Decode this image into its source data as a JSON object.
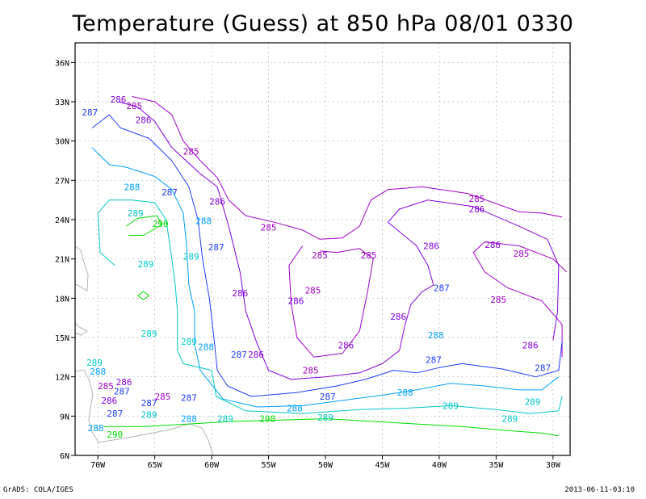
{
  "title": "Temperature (Guess) at 850 hPa 08/01 0330",
  "footer": {
    "left": "GrADS: COLA/IGES",
    "right": "2013-06-11-03:10"
  },
  "axes": {
    "lon_range": [
      -72,
      -28.5
    ],
    "lat_range": [
      6,
      37.5
    ],
    "x_ticks": [
      {
        "v": -70,
        "label": "70W"
      },
      {
        "v": -65,
        "label": "65W"
      },
      {
        "v": -60,
        "label": "60W"
      },
      {
        "v": -55,
        "label": "55W"
      },
      {
        "v": -50,
        "label": "50W"
      },
      {
        "v": -45,
        "label": "45W"
      },
      {
        "v": -40,
        "label": "40W"
      },
      {
        "v": -35,
        "label": "35W"
      },
      {
        "v": -30,
        "label": "30W"
      }
    ],
    "y_ticks": [
      {
        "v": 6,
        "label": "6N"
      },
      {
        "v": 9,
        "label": "9N"
      },
      {
        "v": 12,
        "label": "12N"
      },
      {
        "v": 15,
        "label": "15N"
      },
      {
        "v": 18,
        "label": "18N"
      },
      {
        "v": 21,
        "label": "21N"
      },
      {
        "v": 24,
        "label": "24N"
      },
      {
        "v": 27,
        "label": "27N"
      },
      {
        "v": 30,
        "label": "30N"
      },
      {
        "v": 33,
        "label": "33N"
      },
      {
        "v": 36,
        "label": "36N"
      }
    ],
    "grid": true
  },
  "colors": {
    "285": "#a000c8",
    "286": "#8200dc",
    "287": "#1e3cff",
    "288": "#00a0ff",
    "289": "#00c8c8",
    "290": "#00dc00",
    "land": "#b4b4b4",
    "grid": "#a0a0a0"
  },
  "contours": [
    {
      "level": "285",
      "points": [
        [
          -67,
          33.4
        ],
        [
          -65,
          33
        ],
        [
          -63.5,
          32
        ],
        [
          -62.5,
          30
        ],
        [
          -61,
          28.5
        ],
        [
          -59.5,
          27.2
        ],
        [
          -58.5,
          25.5
        ],
        [
          -57,
          24.3
        ],
        [
          -54.5,
          23.8
        ],
        [
          -52,
          23.2
        ],
        [
          -50.5,
          22.5
        ],
        [
          -48.5,
          22.6
        ],
        [
          -47,
          23.5
        ],
        [
          -46,
          25.5
        ],
        [
          -44.5,
          26.3
        ],
        [
          -41.5,
          26.5
        ],
        [
          -37.5,
          26
        ],
        [
          -33,
          24.6
        ],
        [
          -31,
          24.5
        ],
        [
          -29.2,
          24.2
        ]
      ]
    },
    {
      "level": "285",
      "points": [
        [
          -29.2,
          13.5
        ],
        [
          -29.2,
          16
        ],
        [
          -31,
          17.8
        ],
        [
          -34,
          18.8
        ],
        [
          -36,
          20
        ],
        [
          -37,
          21.5
        ],
        [
          -36,
          22.3
        ],
        [
          -33,
          22
        ],
        [
          -30,
          21
        ],
        [
          -28.8,
          20
        ]
      ]
    },
    {
      "level": "285",
      "points": [
        [
          -52,
          22
        ],
        [
          -53.2,
          20.5
        ],
        [
          -53,
          17.5
        ],
        [
          -52.5,
          15
        ],
        [
          -51,
          13.5
        ],
        [
          -48.5,
          13.8
        ],
        [
          -47,
          15.5
        ],
        [
          -46.3,
          18.5
        ],
        [
          -45.8,
          21
        ],
        [
          -47,
          21.8
        ],
        [
          -49,
          21.5
        ],
        [
          -50.5,
          21.6
        ]
      ]
    },
    {
      "level": "286",
      "points": [
        [
          -68.2,
          33
        ],
        [
          -66.5,
          32.6
        ],
        [
          -65,
          31.5
        ],
        [
          -63.5,
          29.5
        ],
        [
          -61,
          27.5
        ],
        [
          -59.5,
          26.5
        ],
        [
          -58.5,
          23.5
        ],
        [
          -57.5,
          20
        ],
        [
          -57,
          17
        ],
        [
          -56,
          14.5
        ],
        [
          -55,
          12.5
        ],
        [
          -53,
          11.8
        ],
        [
          -50,
          12
        ],
        [
          -47,
          12.3
        ],
        [
          -45,
          13
        ],
        [
          -43.5,
          14
        ],
        [
          -43,
          16
        ],
        [
          -42.5,
          17.5
        ],
        [
          -41.5,
          18.5
        ],
        [
          -40.5,
          19
        ],
        [
          -41,
          20.5
        ],
        [
          -42,
          22
        ],
        [
          -44.5,
          23.8
        ],
        [
          -43.5,
          24.8
        ],
        [
          -41,
          25.5
        ],
        [
          -37,
          25
        ],
        [
          -33,
          23.5
        ],
        [
          -30.5,
          22.5
        ],
        [
          -29.5,
          20.5
        ],
        [
          -29.6,
          17
        ],
        [
          -30,
          14.8
        ]
      ]
    },
    {
      "level": "287",
      "points": [
        [
          -70.5,
          31
        ],
        [
          -69,
          32
        ],
        [
          -68,
          31
        ],
        [
          -65.5,
          30.2
        ],
        [
          -63.5,
          28.5
        ],
        [
          -62,
          26.5
        ],
        [
          -61.2,
          24
        ],
        [
          -60.8,
          21
        ],
        [
          -60.2,
          18
        ],
        [
          -59.8,
          15
        ],
        [
          -59.5,
          12.5
        ],
        [
          -58.6,
          11.3
        ],
        [
          -56.5,
          10.5
        ],
        [
          -52.5,
          10.8
        ],
        [
          -49,
          11.3
        ],
        [
          -46.5,
          11.8
        ],
        [
          -44,
          12.5
        ],
        [
          -42,
          12.3
        ],
        [
          -40,
          12.7
        ],
        [
          -38,
          13
        ],
        [
          -34.5,
          12.6
        ],
        [
          -31.5,
          12
        ],
        [
          -29.5,
          12.5
        ],
        [
          -29.2,
          14.7
        ]
      ]
    },
    {
      "level": "288",
      "points": [
        [
          -70.5,
          29.5
        ],
        [
          -69,
          28.2
        ],
        [
          -67.5,
          28
        ],
        [
          -65,
          27.3
        ],
        [
          -63.5,
          26.3
        ],
        [
          -62.5,
          24.5
        ],
        [
          -62.2,
          22
        ],
        [
          -62,
          19
        ],
        [
          -61.5,
          17
        ],
        [
          -61.5,
          14.5
        ],
        [
          -61,
          12.5
        ],
        [
          -59,
          10.3
        ],
        [
          -56,
          9.7
        ],
        [
          -52,
          9.8
        ],
        [
          -48.5,
          10.2
        ],
        [
          -45,
          10.6
        ],
        [
          -42,
          11
        ],
        [
          -39,
          11.5
        ],
        [
          -36,
          11.3
        ],
        [
          -33,
          11
        ],
        [
          -31,
          11
        ],
        [
          -29.5,
          12
        ]
      ]
    },
    {
      "level": "289",
      "points": [
        [
          -68.5,
          20.5
        ],
        [
          -69.8,
          21.5
        ],
        [
          -70,
          24.5
        ],
        [
          -69,
          25.5
        ],
        [
          -67,
          25.5
        ],
        [
          -65,
          25.3
        ],
        [
          -64,
          24
        ],
        [
          -63.5,
          21
        ],
        [
          -63.2,
          19
        ],
        [
          -63,
          17
        ],
        [
          -63,
          14
        ],
        [
          -62.5,
          13
        ],
        [
          -60,
          12.5
        ],
        [
          -59.6,
          10.5
        ],
        [
          -57,
          9.4
        ],
        [
          -52,
          9.2
        ],
        [
          -47,
          9.5
        ],
        [
          -43,
          9.6
        ],
        [
          -39,
          9.8
        ],
        [
          -35,
          9.5
        ],
        [
          -32,
          9.2
        ],
        [
          -29.5,
          9.4
        ],
        [
          -29.2,
          10.5
        ]
      ]
    },
    {
      "level": "290",
      "points": [
        [
          -69.5,
          8.2
        ],
        [
          -66,
          8.2
        ],
        [
          -62,
          8.4
        ],
        [
          -58,
          8.6
        ],
        [
          -54,
          8.7
        ],
        [
          -50,
          8.8
        ],
        [
          -46,
          8.6
        ],
        [
          -42,
          8.4
        ],
        [
          -38,
          8.2
        ],
        [
          -34,
          7.9
        ],
        [
          -31,
          7.7
        ],
        [
          -29.5,
          7.5
        ]
      ]
    },
    {
      "level": "290",
      "points": [
        [
          -67.5,
          23.5
        ],
        [
          -66.5,
          24.1
        ],
        [
          -64.8,
          24.3
        ],
        [
          -64.4,
          23.6
        ],
        [
          -66,
          22.8
        ],
        [
          -67.3,
          22.8
        ]
      ]
    },
    {
      "level": "290",
      "points": [
        [
          -66.5,
          18.2
        ],
        [
          -66,
          18.5
        ],
        [
          -65.5,
          18.2
        ],
        [
          -66,
          17.9
        ],
        [
          -66.5,
          18.2
        ]
      ]
    }
  ],
  "labels": [
    {
      "level": "285",
      "text": "285",
      "lon": -66.8,
      "lat": 32.7
    },
    {
      "level": "286",
      "text": "286",
      "lon": -68.2,
      "lat": 33.2
    },
    {
      "level": "287",
      "text": "287",
      "lon": -70.7,
      "lat": 32.2
    },
    {
      "level": "286",
      "text": "286",
      "lon": -66,
      "lat": 31.6
    },
    {
      "level": "285",
      "text": "285",
      "lon": -61.8,
      "lat": 29.2
    },
    {
      "level": "288",
      "text": "288",
      "lon": -67,
      "lat": 26.5
    },
    {
      "level": "287",
      "text": "287",
      "lon": -63.7,
      "lat": 26.1
    },
    {
      "level": "286",
      "text": "286",
      "lon": -59.5,
      "lat": 25.4
    },
    {
      "level": "289",
      "text": "289",
      "lon": -66.7,
      "lat": 24.5
    },
    {
      "level": "290",
      "text": "290",
      "lon": -64.5,
      "lat": 23.7
    },
    {
      "level": "288",
      "text": "288",
      "lon": -60.7,
      "lat": 23.9
    },
    {
      "level": "285",
      "text": "285",
      "lon": -55,
      "lat": 23.4
    },
    {
      "level": "287",
      "text": "287",
      "lon": -59.6,
      "lat": 21.9
    },
    {
      "level": "289",
      "text": "289",
      "lon": -65.8,
      "lat": 20.6
    },
    {
      "level": "289",
      "text": "289",
      "lon": -61.8,
      "lat": 21.2
    },
    {
      "level": "285",
      "text": "285",
      "lon": -50.5,
      "lat": 21.3
    },
    {
      "level": "285",
      "text": "285",
      "lon": -46.2,
      "lat": 21.3
    },
    {
      "level": "285",
      "text": "285",
      "lon": -36.7,
      "lat": 25.6
    },
    {
      "level": "286",
      "text": "286",
      "lon": -36.7,
      "lat": 24.8
    },
    {
      "level": "286",
      "text": "286",
      "lon": -40.7,
      "lat": 22
    },
    {
      "level": "286",
      "text": "286",
      "lon": -35.3,
      "lat": 22.1
    },
    {
      "level": "285",
      "text": "285",
      "lon": -32.8,
      "lat": 21.4
    },
    {
      "level": "286",
      "text": "286",
      "lon": -57.5,
      "lat": 18.4
    },
    {
      "level": "285",
      "text": "285",
      "lon": -51.1,
      "lat": 18.6
    },
    {
      "level": "286",
      "text": "286",
      "lon": -52.6,
      "lat": 17.8
    },
    {
      "level": "287",
      "text": "287",
      "lon": -39.8,
      "lat": 18.8
    },
    {
      "level": "285",
      "text": "285",
      "lon": -34.8,
      "lat": 17.9
    },
    {
      "level": "286",
      "text": "286",
      "lon": -43.6,
      "lat": 16.6
    },
    {
      "level": "289",
      "text": "289",
      "lon": -65.5,
      "lat": 15.3
    },
    {
      "level": "288",
      "text": "288",
      "lon": -40.3,
      "lat": 15.2
    },
    {
      "level": "289",
      "text": "289",
      "lon": -62,
      "lat": 14.7
    },
    {
      "level": "286",
      "text": "286",
      "lon": -48.2,
      "lat": 14.4
    },
    {
      "level": "286",
      "text": "286",
      "lon": -32,
      "lat": 14.4
    },
    {
      "level": "288",
      "text": "288",
      "lon": -60.5,
      "lat": 14.3
    },
    {
      "level": "287",
      "text": "287",
      "lon": -57.6,
      "lat": 13.7
    },
    {
      "level": "286",
      "text": "286",
      "lon": -56.1,
      "lat": 13.7
    },
    {
      "level": "287",
      "text": "287",
      "lon": -40.5,
      "lat": 13.3
    },
    {
      "level": "289",
      "text": "289",
      "lon": -70.3,
      "lat": 13.1
    },
    {
      "level": "285",
      "text": "285",
      "lon": -51.3,
      "lat": 12.5
    },
    {
      "level": "287",
      "text": "287",
      "lon": -30.9,
      "lat": 12.7
    },
    {
      "level": "288",
      "text": "288",
      "lon": -70,
      "lat": 12.4
    },
    {
      "level": "286",
      "text": "286",
      "lon": -67.7,
      "lat": 11.6
    },
    {
      "level": "285",
      "text": "285",
      "lon": -69.3,
      "lat": 11.3
    },
    {
      "level": "287",
      "text": "287",
      "lon": -67.9,
      "lat": 10.9
    },
    {
      "level": "288",
      "text": "288",
      "lon": -43,
      "lat": 10.8
    },
    {
      "level": "285",
      "text": "285",
      "lon": -64.3,
      "lat": 10.5
    },
    {
      "level": "287",
      "text": "287",
      "lon": -62,
      "lat": 10.4
    },
    {
      "level": "287",
      "text": "287",
      "lon": -49.8,
      "lat": 10.5
    },
    {
      "level": "286",
      "text": "286",
      "lon": -69,
      "lat": 10.2
    },
    {
      "level": "287",
      "text": "287",
      "lon": -65.5,
      "lat": 10
    },
    {
      "level": "289",
      "text": "289",
      "lon": -31.8,
      "lat": 10.1
    },
    {
      "level": "289",
      "text": "289",
      "lon": -39,
      "lat": 9.8
    },
    {
      "level": "288",
      "text": "288",
      "lon": -52.7,
      "lat": 9.6
    },
    {
      "level": "287",
      "text": "287",
      "lon": -68.5,
      "lat": 9.2
    },
    {
      "level": "289",
      "text": "289",
      "lon": -65.5,
      "lat": 9.1
    },
    {
      "level": "288",
      "text": "288",
      "lon": -62,
      "lat": 8.8
    },
    {
      "level": "289",
      "text": "289",
      "lon": -58.8,
      "lat": 8.8
    },
    {
      "level": "290",
      "text": "290",
      "lon": -55.1,
      "lat": 8.8
    },
    {
      "level": "289",
      "text": "289",
      "lon": -50,
      "lat": 8.9
    },
    {
      "level": "289",
      "text": "289",
      "lon": -33.8,
      "lat": 8.8
    },
    {
      "level": "288",
      "text": "288",
      "lon": -70.2,
      "lat": 8.1
    },
    {
      "level": "290",
      "text": "290",
      "lon": -68.5,
      "lat": 7.6
    }
  ]
}
